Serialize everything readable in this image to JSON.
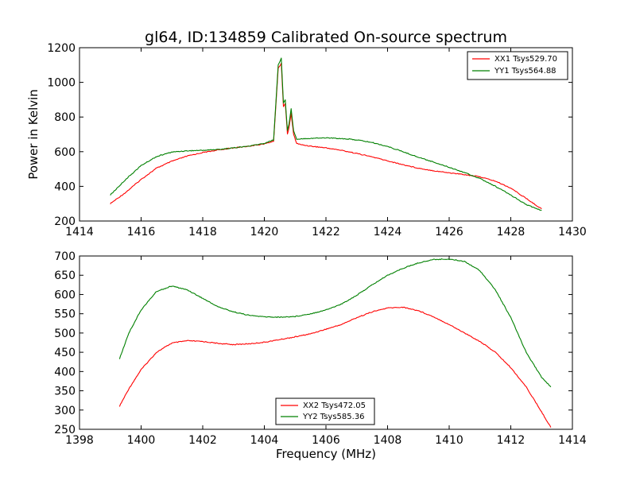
{
  "figure": {
    "title": "gl64, ID:134859 Calibrated On-source spectrum",
    "ylabel": "Power in Kelvin",
    "xlabel": "Frequency (MHz)"
  },
  "chart_data": [
    {
      "type": "line",
      "title": "gl64, ID:134859 Calibrated On-source spectrum",
      "ylabel": "Power in Kelvin",
      "xlabel": "",
      "xlim": [
        1414,
        1430
      ],
      "ylim": [
        200,
        1200
      ],
      "xticks": [
        1414,
        1416,
        1418,
        1420,
        1422,
        1424,
        1426,
        1428,
        1430
      ],
      "yticks": [
        200,
        400,
        600,
        800,
        1000,
        1200
      ],
      "grid": false,
      "legend": "top-right",
      "series": [
        {
          "name": "XX1 Tsys529.70",
          "color": "#ff0000",
          "x": [
            1415.0,
            1415.5,
            1416.0,
            1416.5,
            1417.0,
            1417.5,
            1418.0,
            1418.5,
            1419.0,
            1419.5,
            1420.0,
            1420.3,
            1420.45,
            1420.55,
            1420.62,
            1420.68,
            1420.75,
            1420.8,
            1420.87,
            1420.95,
            1421.05,
            1421.2,
            1421.5,
            1422.0,
            1422.5,
            1423.0,
            1423.5,
            1424.0,
            1424.5,
            1425.0,
            1425.5,
            1426.0,
            1426.5,
            1427.0,
            1427.5,
            1428.0,
            1428.5,
            1429.0
          ],
          "y": [
            300,
            365,
            440,
            505,
            545,
            575,
            595,
            610,
            622,
            632,
            645,
            660,
            1080,
            1110,
            860,
            880,
            700,
            740,
            820,
            700,
            648,
            640,
            632,
            622,
            608,
            590,
            570,
            547,
            525,
            505,
            490,
            478,
            468,
            455,
            430,
            390,
            330,
            270
          ]
        },
        {
          "name": "YY1 Tsys564.88",
          "color": "#008000",
          "x": [
            1415.0,
            1415.5,
            1416.0,
            1416.5,
            1417.0,
            1417.5,
            1418.0,
            1418.5,
            1419.0,
            1419.5,
            1420.0,
            1420.3,
            1420.45,
            1420.55,
            1420.62,
            1420.68,
            1420.75,
            1420.8,
            1420.87,
            1420.95,
            1421.05,
            1421.2,
            1421.5,
            1422.0,
            1422.5,
            1423.0,
            1423.5,
            1424.0,
            1424.5,
            1425.0,
            1425.5,
            1426.0,
            1426.5,
            1427.0,
            1427.5,
            1428.0,
            1428.5,
            1429.0
          ],
          "y": [
            350,
            440,
            520,
            572,
            598,
            605,
            608,
            613,
            622,
            632,
            648,
            668,
            1100,
            1140,
            880,
            900,
            720,
            760,
            850,
            720,
            672,
            675,
            677,
            680,
            676,
            668,
            653,
            630,
            600,
            568,
            540,
            510,
            480,
            445,
            400,
            350,
            295,
            260
          ]
        }
      ]
    },
    {
      "type": "line",
      "title": "",
      "ylabel": "",
      "xlabel": "Frequency (MHz)",
      "xlim": [
        1398,
        1414
      ],
      "ylim": [
        250,
        700
      ],
      "xticks": [
        1398,
        1400,
        1402,
        1404,
        1406,
        1408,
        1410,
        1412,
        1414
      ],
      "yticks": [
        250,
        300,
        350,
        400,
        450,
        500,
        550,
        600,
        650,
        700
      ],
      "grid": false,
      "legend": "bottom-center",
      "series": [
        {
          "name": "XX2 Tsys472.05",
          "color": "#ff0000",
          "x": [
            1399.3,
            1399.6,
            1400.0,
            1400.5,
            1401.0,
            1401.5,
            1402.0,
            1402.5,
            1403.0,
            1403.5,
            1404.0,
            1404.5,
            1405.0,
            1405.5,
            1406.0,
            1406.5,
            1407.0,
            1407.5,
            1408.0,
            1408.5,
            1409.0,
            1409.5,
            1410.0,
            1410.5,
            1411.0,
            1411.5,
            1412.0,
            1412.5,
            1413.0,
            1413.3
          ],
          "y": [
            310,
            355,
            405,
            450,
            474,
            480,
            478,
            473,
            470,
            472,
            476,
            483,
            490,
            498,
            510,
            522,
            540,
            555,
            565,
            567,
            558,
            542,
            522,
            500,
            478,
            450,
            410,
            360,
            295,
            255
          ]
        },
        {
          "name": "YY2 Tsys585.36",
          "color": "#008000",
          "x": [
            1399.3,
            1399.6,
            1400.0,
            1400.5,
            1401.0,
            1401.5,
            1402.0,
            1402.5,
            1403.0,
            1403.5,
            1404.0,
            1404.5,
            1405.0,
            1405.5,
            1406.0,
            1406.5,
            1407.0,
            1407.5,
            1408.0,
            1408.5,
            1409.0,
            1409.5,
            1410.0,
            1410.5,
            1411.0,
            1411.5,
            1412.0,
            1412.5,
            1413.0,
            1413.3
          ],
          "y": [
            433,
            500,
            560,
            608,
            622,
            612,
            590,
            568,
            555,
            546,
            542,
            541,
            543,
            550,
            560,
            575,
            598,
            625,
            650,
            668,
            682,
            691,
            692,
            686,
            662,
            612,
            540,
            450,
            385,
            360
          ]
        }
      ]
    }
  ]
}
